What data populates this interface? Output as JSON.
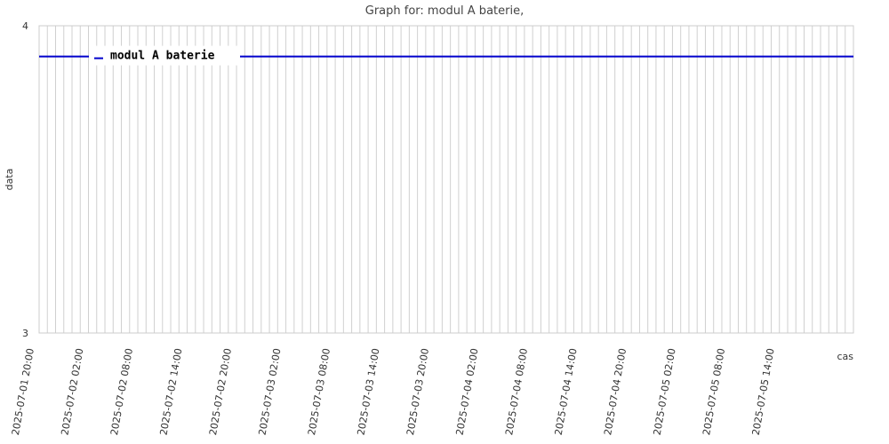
{
  "chart_data": {
    "type": "line",
    "title": "Graph for: modul A baterie,",
    "xlabel": "cas",
    "ylabel": "data",
    "ylim": [
      3,
      4
    ],
    "y_ticks": [
      "3",
      "4"
    ],
    "x_range": [
      "2025-07-01 20:00",
      "2025-07-05 23:00"
    ],
    "x_ticks": [
      "2025-07-01 20:00",
      "2025-07-02 02:00",
      "2025-07-02 08:00",
      "2025-07-02 14:00",
      "2025-07-02 20:00",
      "2025-07-03 02:00",
      "2025-07-03 08:00",
      "2025-07-03 14:00",
      "2025-07-03 20:00",
      "2025-07-04 02:00",
      "2025-07-04 08:00",
      "2025-07-04 14:00",
      "2025-07-04 20:00",
      "2025-07-05 02:00",
      "2025-07-05 08:00",
      "2025-07-05 14:00"
    ],
    "grid": "vertical-hourly",
    "legend": "top-left",
    "series": [
      {
        "name": "modul A baterie",
        "color": "#0000cc",
        "x": [
          "2025-07-01 20:00",
          "2025-07-05 23:00"
        ],
        "y": [
          3.9,
          3.9
        ]
      }
    ]
  }
}
